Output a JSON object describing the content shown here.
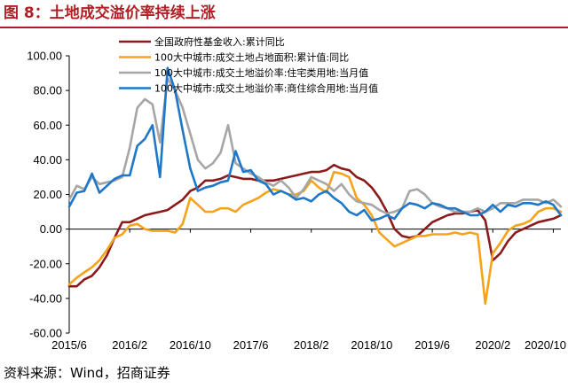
{
  "header": {
    "title": "图 8：土地成交溢价率持续上涨"
  },
  "footer": {
    "source": "资料来源：Wind，招商证券"
  },
  "chart_data": {
    "type": "line",
    "title": "图 8：土地成交溢价率持续上涨",
    "ylim": [
      -60,
      100
    ],
    "yticks": [
      100,
      80,
      60,
      40,
      20,
      0,
      -20,
      -40,
      -60
    ],
    "ytick_labels": [
      "100.00",
      "80.00",
      "60.00",
      "40.00",
      "20.00",
      "0.00",
      "-20.00",
      "-40.00",
      "-60.00"
    ],
    "x_labels": [
      "2015/6",
      "2016/2",
      "2016/10",
      "2017/6",
      "2018/2",
      "2018/10",
      "2019/6",
      "2020/2",
      "2020/10"
    ],
    "x": [
      "2015/6",
      "2015/7",
      "2015/8",
      "2015/9",
      "2015/10",
      "2015/11",
      "2015/12",
      "2016/1",
      "2016/2",
      "2016/3",
      "2016/4",
      "2016/5",
      "2016/6",
      "2016/7",
      "2016/8",
      "2016/9",
      "2016/10",
      "2016/11",
      "2016/12",
      "2017/1",
      "2017/2",
      "2017/3",
      "2017/4",
      "2017/5",
      "2017/6",
      "2017/7",
      "2017/8",
      "2017/9",
      "2017/10",
      "2017/11",
      "2017/12",
      "2018/1",
      "2018/2",
      "2018/3",
      "2018/4",
      "2018/5",
      "2018/6",
      "2018/7",
      "2018/8",
      "2018/9",
      "2018/10",
      "2018/11",
      "2018/12",
      "2019/1",
      "2019/2",
      "2019/3",
      "2019/4",
      "2019/5",
      "2019/6",
      "2019/7",
      "2019/8",
      "2019/9",
      "2019/10",
      "2019/11",
      "2019/12",
      "2020/1",
      "2020/2",
      "2020/3",
      "2020/4",
      "2020/5",
      "2020/6",
      "2020/7",
      "2020/8",
      "2020/9",
      "2020/10",
      "2020/11"
    ],
    "series": [
      {
        "name": "全国政府性基金收入:累计同比",
        "color": "#8b1a1a",
        "values": [
          -33,
          -33,
          -29,
          -27,
          -22,
          -15,
          -5,
          4,
          4,
          6,
          8,
          9,
          10,
          11,
          14,
          17,
          22,
          24,
          28,
          28,
          29,
          31,
          30,
          29,
          29,
          28,
          28,
          28,
          29,
          30,
          31,
          32,
          33,
          33,
          34,
          37,
          35,
          34,
          30,
          28,
          24,
          18,
          10,
          0,
          -4,
          -5,
          -4,
          0,
          4,
          6,
          8,
          9,
          9,
          10,
          11,
          5,
          -18,
          -14,
          -7,
          -2,
          0,
          2,
          4,
          5,
          6,
          8
        ]
      },
      {
        "name": "100大中城市:成交土地占地面积:累计值:同比",
        "color": "#f5a31a",
        "values": [
          -32,
          -28,
          -25,
          -22,
          -18,
          -12,
          -5,
          -3,
          2,
          3,
          0,
          -1,
          -1,
          -1,
          -2,
          3,
          18,
          14,
          10,
          10,
          12,
          12,
          10,
          14,
          16,
          18,
          21,
          23,
          22,
          20,
          20,
          22,
          28,
          24,
          21,
          33,
          32,
          30,
          18,
          14,
          8,
          -2,
          -6,
          -10,
          -8,
          -6,
          -4,
          -4,
          -3,
          -3,
          -3,
          -2,
          -3,
          -2,
          -3,
          -43,
          -14,
          -8,
          -1,
          2,
          3,
          5,
          10,
          12,
          12,
          10
        ]
      },
      {
        "name": "100大中城市:成交土地溢价率:住宅类用地:当月值",
        "color": "#a6a6a6",
        "values": [
          17,
          25,
          23,
          30,
          26,
          27,
          28,
          30,
          47,
          70,
          75,
          72,
          50,
          87,
          80,
          70,
          55,
          40,
          35,
          38,
          44,
          60,
          38,
          35,
          32,
          30,
          27,
          25,
          28,
          24,
          18,
          23,
          30,
          28,
          26,
          22,
          26,
          20,
          16,
          15,
          14,
          11,
          9,
          10,
          12,
          22,
          23,
          20,
          15,
          13,
          12,
          10,
          10,
          10,
          12,
          10,
          12,
          15,
          15,
          15,
          17,
          17,
          17,
          15,
          17,
          13
        ]
      },
      {
        "name": "100大中城市:成交土地溢价率:商住综合用地:当月值",
        "color": "#1f77c8",
        "values": [
          13,
          21,
          22,
          32,
          21,
          25,
          29,
          31,
          31,
          48,
          52,
          60,
          30,
          93,
          80,
          57,
          35,
          22,
          24,
          25,
          27,
          28,
          45,
          33,
          34,
          28,
          26,
          20,
          22,
          20,
          17,
          18,
          16,
          20,
          22,
          18,
          15,
          10,
          8,
          11,
          5,
          6,
          8,
          6,
          12,
          15,
          14,
          12,
          15,
          14,
          12,
          12,
          10,
          8,
          8,
          10,
          14,
          10,
          14,
          13,
          15,
          15,
          14,
          16,
          14,
          8
        ]
      }
    ],
    "grid": false,
    "legend_position": "top"
  }
}
